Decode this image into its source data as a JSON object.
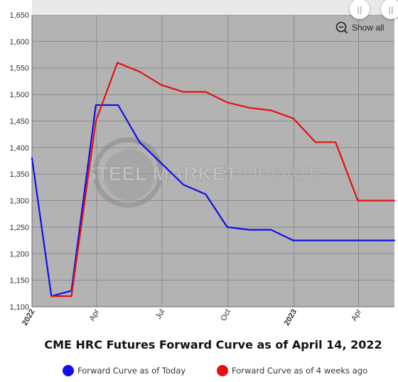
{
  "colors": {
    "plot_background": "#b3b3b3",
    "grid": "#8c8c8c",
    "today": "#1010e6",
    "four_weeks_ago": "#e61010"
  },
  "zoom_controls": {
    "show_all_label": "Show all",
    "zoom_icon": "zoom-out-icon",
    "pause_label": "||"
  },
  "watermark": {
    "text_left": "STEEL MARKET",
    "text_right": "UPDATE",
    "logo_icon": "globe-swoosh-icon"
  },
  "chart_data": {
    "type": "line",
    "title": "CME HRC Futures Forward Curve as of April 14, 2022",
    "ylim": [
      1100,
      1650
    ],
    "yticks": [
      "1,100",
      "1,150",
      "1,200",
      "1,250",
      "1,300",
      "1,350",
      "1,400",
      "1,450",
      "1,500",
      "1,550",
      "1,600",
      "1,650"
    ],
    "xlim": [
      "2022-01-01",
      "2023-05-21"
    ],
    "xticks": [
      {
        "date": "2022-01-01",
        "label": "2022",
        "bold": true
      },
      {
        "date": "2022-04-01",
        "label": "Apr",
        "bold": false
      },
      {
        "date": "2022-07-01",
        "label": "Jul",
        "bold": false
      },
      {
        "date": "2022-10-01",
        "label": "Oct",
        "bold": false
      },
      {
        "date": "2023-01-01",
        "label": "2023",
        "bold": true
      },
      {
        "date": "2023-04-01",
        "label": "Apr",
        "bold": false
      }
    ],
    "grid": true,
    "legend_position": "bottom",
    "series": [
      {
        "name": "Forward Curve as of Today",
        "color": "#1010e6",
        "points": [
          {
            "x": "2022-01-01",
            "y": 1380
          },
          {
            "x": "2022-01-28",
            "y": 1120
          },
          {
            "x": "2022-02-25",
            "y": 1130
          },
          {
            "x": "2022-03-31",
            "y": 1480
          },
          {
            "x": "2022-05-01",
            "y": 1480
          },
          {
            "x": "2022-05-31",
            "y": 1410
          },
          {
            "x": "2022-07-31",
            "y": 1330
          },
          {
            "x": "2022-08-31",
            "y": 1312
          },
          {
            "x": "2022-09-30",
            "y": 1250
          },
          {
            "x": "2022-10-31",
            "y": 1245
          },
          {
            "x": "2022-11-30",
            "y": 1245
          },
          {
            "x": "2022-12-31",
            "y": 1225
          },
          {
            "x": "2023-01-31",
            "y": 1225
          },
          {
            "x": "2023-02-28",
            "y": 1225
          },
          {
            "x": "2023-03-31",
            "y": 1225
          },
          {
            "x": "2023-04-30",
            "y": 1225
          },
          {
            "x": "2023-05-21",
            "y": 1225
          }
        ]
      },
      {
        "name": "Forward Curve as of 4 weeks ago",
        "color": "#e61010",
        "points": [
          {
            "x": "2022-01-28",
            "y": 1120
          },
          {
            "x": "2022-02-25",
            "y": 1120
          },
          {
            "x": "2022-03-31",
            "y": 1450
          },
          {
            "x": "2022-04-30",
            "y": 1560
          },
          {
            "x": "2022-05-31",
            "y": 1543
          },
          {
            "x": "2022-06-30",
            "y": 1518
          },
          {
            "x": "2022-07-31",
            "y": 1505
          },
          {
            "x": "2022-08-31",
            "y": 1505
          },
          {
            "x": "2022-09-30",
            "y": 1485
          },
          {
            "x": "2022-10-31",
            "y": 1475
          },
          {
            "x": "2022-11-30",
            "y": 1470
          },
          {
            "x": "2022-12-31",
            "y": 1455
          },
          {
            "x": "2023-01-31",
            "y": 1410
          },
          {
            "x": "2023-02-28",
            "y": 1410
          },
          {
            "x": "2023-03-31",
            "y": 1300
          },
          {
            "x": "2023-04-30",
            "y": 1300
          },
          {
            "x": "2023-05-21",
            "y": 1300
          }
        ]
      }
    ]
  }
}
